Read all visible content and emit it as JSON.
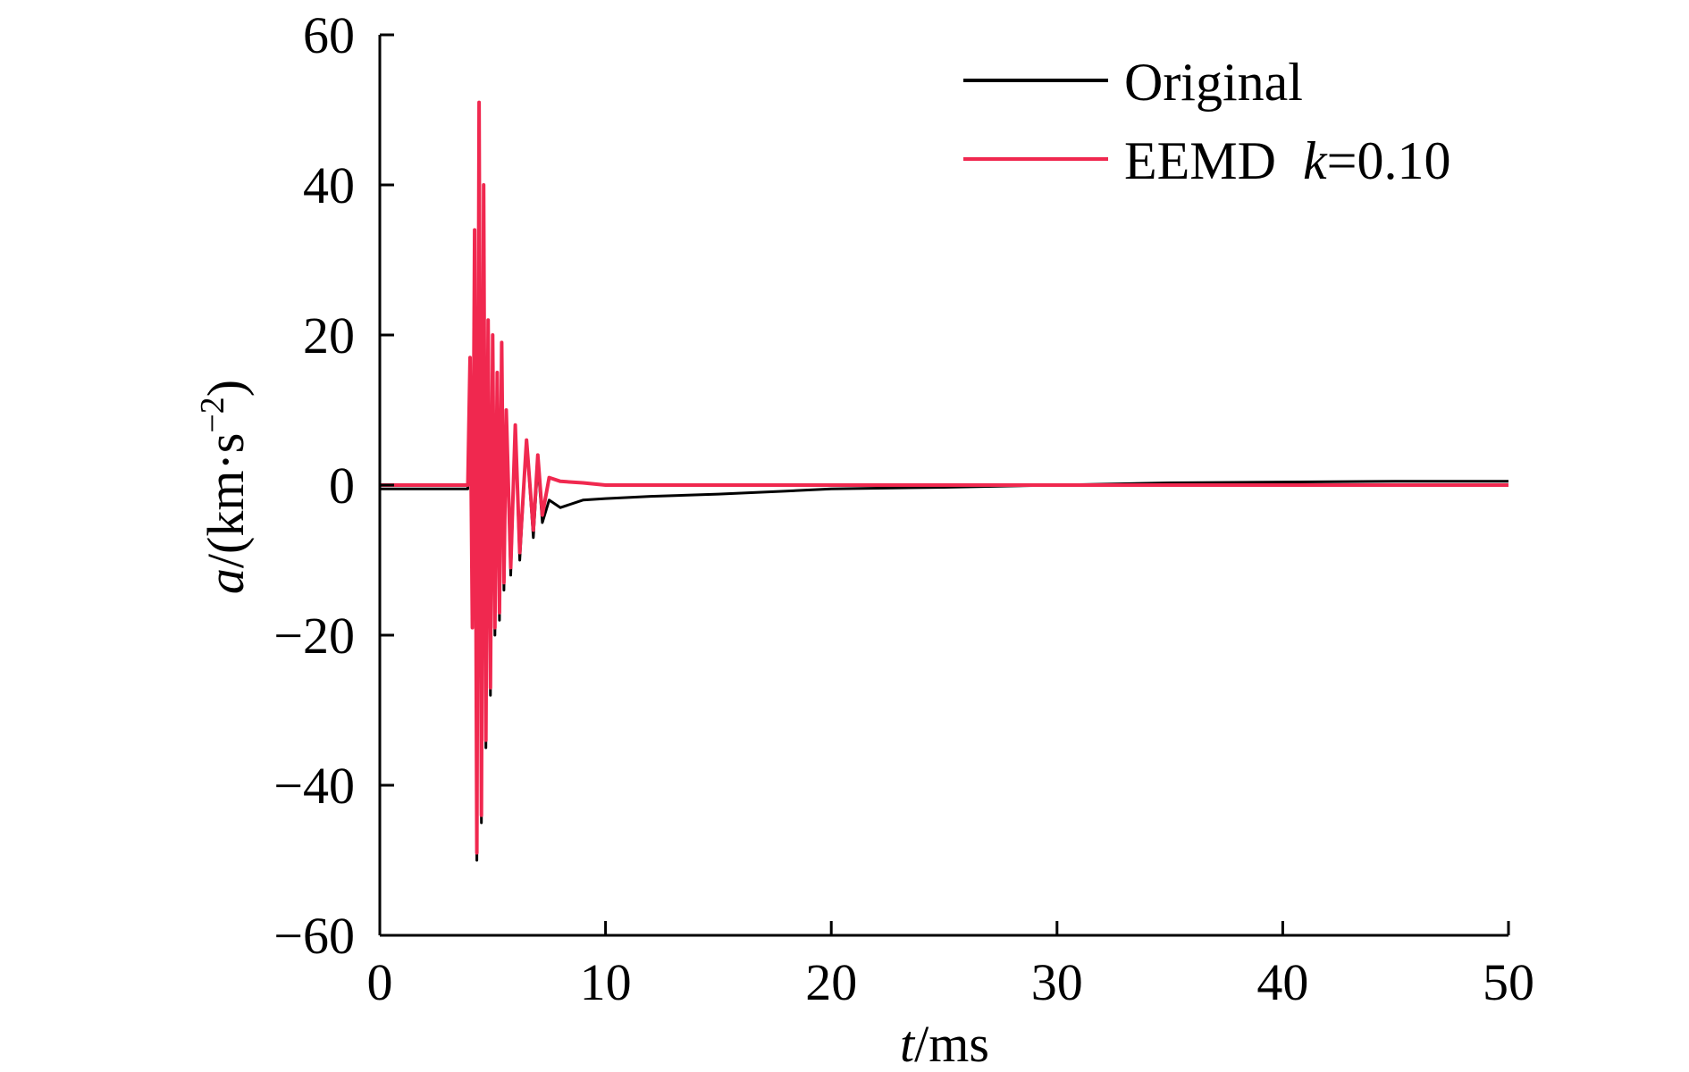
{
  "chart_data": {
    "type": "line",
    "title": "",
    "xlabel": {
      "var": "t",
      "unit": "/ms"
    },
    "ylabel": {
      "var": "a",
      "unit_prefix": "/(km·s",
      "unit_exp": "−2",
      "unit_suffix": ")"
    },
    "xlim": [
      0,
      50
    ],
    "ylim": [
      -60,
      60
    ],
    "x_ticks": [
      0,
      10,
      20,
      30,
      40,
      50
    ],
    "x_tick_labels": [
      "0",
      "10",
      "20",
      "30",
      "40",
      "50"
    ],
    "y_ticks": [
      60,
      40,
      20,
      0,
      -20,
      -40,
      -60
    ],
    "y_tick_labels": [
      "60",
      "40",
      "20",
      "0",
      "−20",
      "−40",
      "−60"
    ],
    "grid": false,
    "legend_position": "top-right",
    "series": [
      {
        "name": "Original",
        "legend": {
          "text": "Original",
          "k": "",
          "k_value": ""
        },
        "color": "#000000",
        "x": [
          0,
          3.9,
          4.0,
          4.1,
          4.2,
          4.3,
          4.4,
          4.5,
          4.6,
          4.7,
          4.8,
          4.9,
          5.0,
          5.1,
          5.2,
          5.3,
          5.4,
          5.5,
          5.6,
          5.8,
          6.0,
          6.2,
          6.5,
          6.8,
          7.0,
          7.2,
          7.5,
          8.0,
          9.0,
          10.0,
          12.0,
          15.0,
          18.0,
          20.0,
          25.0,
          30.0,
          35.0,
          40.0,
          45.0,
          50.0
        ],
        "y": [
          -0.5,
          -0.5,
          17,
          -19,
          34,
          -50,
          51,
          -45,
          40,
          -35,
          22,
          -28,
          20,
          -20,
          15,
          -18,
          19,
          -14,
          10,
          -12,
          8,
          -10,
          6,
          -7,
          3,
          -5,
          -2,
          -3,
          -2,
          -1.8,
          -1.5,
          -1.2,
          -0.8,
          -0.5,
          -0.3,
          0,
          0.3,
          0.4,
          0.5,
          0.5
        ]
      },
      {
        "name": "EEMD k=0.10",
        "legend": {
          "text": "EEMD",
          "k": "k",
          "k_value": "=0.10"
        },
        "color": "#f0284f",
        "x": [
          0,
          3.9,
          4.0,
          4.1,
          4.2,
          4.3,
          4.4,
          4.5,
          4.6,
          4.7,
          4.8,
          4.9,
          5.0,
          5.1,
          5.2,
          5.3,
          5.4,
          5.5,
          5.6,
          5.8,
          6.0,
          6.2,
          6.5,
          6.8,
          7.0,
          7.2,
          7.5,
          8.0,
          9.0,
          10.0,
          12.0,
          15.0,
          18.0,
          20.0,
          25.0,
          30.0,
          35.0,
          40.0,
          45.0,
          50.0
        ],
        "y": [
          0,
          0,
          17,
          -19,
          34,
          -49,
          51,
          -44,
          40,
          -34,
          22,
          -27,
          20,
          -19,
          15,
          -17,
          19,
          -13,
          10,
          -11,
          8,
          -9,
          6,
          -6,
          4,
          -4,
          1,
          0.5,
          0.3,
          0,
          0,
          0,
          0,
          0,
          0,
          0,
          0,
          0,
          0,
          0
        ]
      }
    ]
  }
}
